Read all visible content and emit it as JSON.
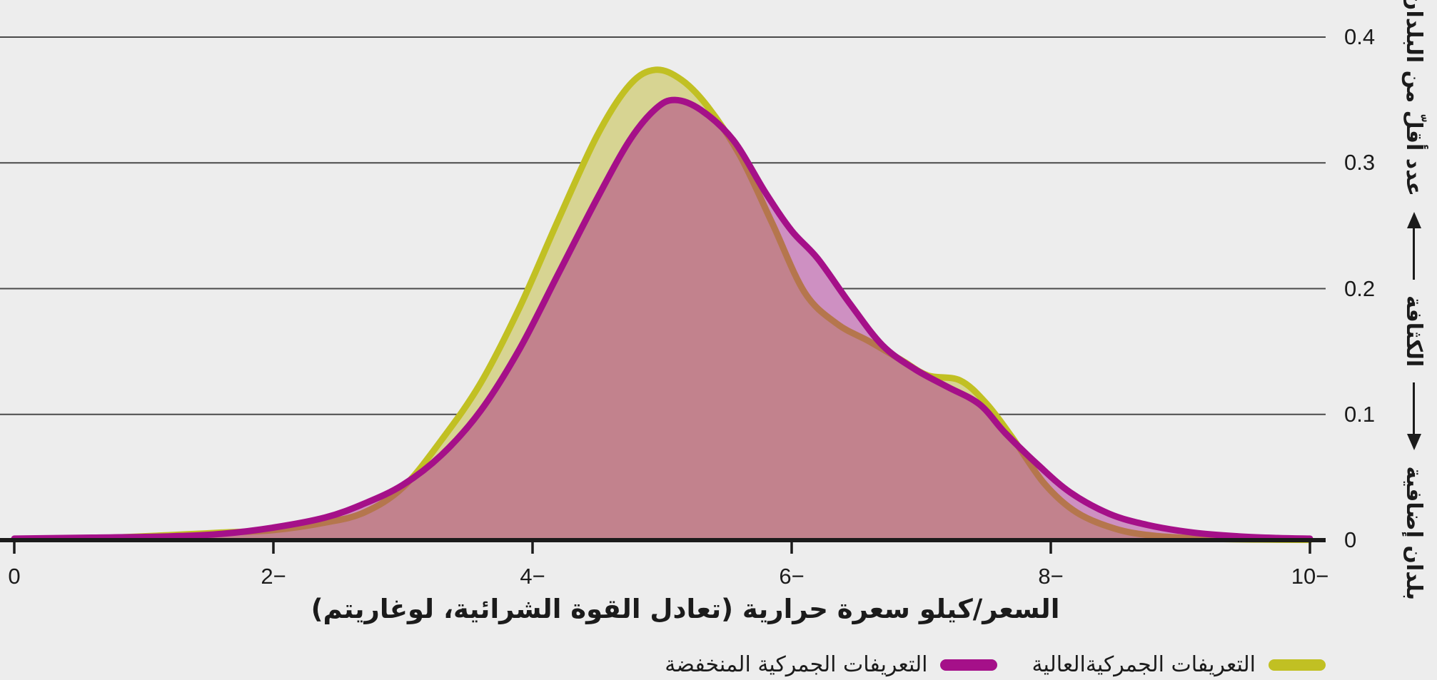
{
  "colors": {
    "background": "#ededed",
    "gridline": "#4a4a4a",
    "axis": "#1b1b1b",
    "text": "#1b1b1b",
    "high_tariffs_line": "#c1c023",
    "high_tariffs_fill": "#d7d492",
    "low_tariffs_line": "#a51089",
    "low_tariffs_fill": "rgba(165,16,137,0.42)"
  },
  "chart_data": {
    "type": "area",
    "title": "",
    "xlabel": "السعر/كيلو سعرة حرارية (تعادل القوة الشرائية، لوغاريتم)",
    "ylabel_right": {
      "top": "عدد أقلّ من البلدان",
      "middle": "الكثافة",
      "bottom": "بلدان إضافية"
    },
    "xlim": [
      0,
      -10
    ],
    "ylim": [
      0,
      0.4
    ],
    "grid": "horizontal",
    "legend_position": "bottom-right",
    "x_ticks": [
      "0",
      "−2",
      "−4",
      "−6",
      "−8",
      "−10"
    ],
    "x_tick_values": [
      0,
      -2,
      -4,
      -6,
      -8,
      -10
    ],
    "y_ticks": [
      "0",
      "0.1",
      "0.2",
      "0.3",
      "0.4"
    ],
    "y_tick_values": [
      0,
      0.1,
      0.2,
      0.3,
      0.4
    ],
    "series": [
      {
        "name": "التعريفات الجمركيةالعالية",
        "key": "high-tariffs",
        "color": "#c1c023",
        "fill": "#d7d492",
        "peak": {
          "x": -4.95,
          "density": 0.374
        },
        "points": [
          [
            0,
            0.0008
          ],
          [
            -0.6,
            0.0015
          ],
          [
            -1.2,
            0.004
          ],
          [
            -1.6,
            0.006
          ],
          [
            -2,
            0.008
          ],
          [
            -2.4,
            0.014
          ],
          [
            -2.7,
            0.022
          ],
          [
            -3,
            0.042
          ],
          [
            -3.3,
            0.08
          ],
          [
            -3.6,
            0.125
          ],
          [
            -3.9,
            0.185
          ],
          [
            -4.2,
            0.255
          ],
          [
            -4.5,
            0.322
          ],
          [
            -4.75,
            0.362
          ],
          [
            -4.95,
            0.374
          ],
          [
            -5.15,
            0.366
          ],
          [
            -5.35,
            0.345
          ],
          [
            -5.6,
            0.306
          ],
          [
            -5.85,
            0.252
          ],
          [
            -6.1,
            0.197
          ],
          [
            -6.35,
            0.172
          ],
          [
            -6.6,
            0.158
          ],
          [
            -6.85,
            0.143
          ],
          [
            -7.05,
            0.131
          ],
          [
            -7.3,
            0.127
          ],
          [
            -7.5,
            0.109
          ],
          [
            -7.7,
            0.082
          ],
          [
            -7.95,
            0.045
          ],
          [
            -8.2,
            0.022
          ],
          [
            -8.5,
            0.009
          ],
          [
            -8.8,
            0.0035
          ],
          [
            -9.2,
            0.0012
          ],
          [
            -9.6,
            0.0005
          ],
          [
            -10,
            0.0002
          ]
        ]
      },
      {
        "name": "التعريفات الجمركية المنخفضة",
        "key": "low-tariffs",
        "color": "#a51089",
        "fill": "rgba(165,16,137,0.42)",
        "peak": {
          "x": -5.1,
          "density": 0.35
        },
        "points": [
          [
            0,
            0.0012
          ],
          [
            -0.6,
            0.002
          ],
          [
            -1.2,
            0.003
          ],
          [
            -1.6,
            0.005
          ],
          [
            -2,
            0.01
          ],
          [
            -2.4,
            0.018
          ],
          [
            -2.7,
            0.029
          ],
          [
            -3,
            0.044
          ],
          [
            -3.3,
            0.068
          ],
          [
            -3.6,
            0.103
          ],
          [
            -3.9,
            0.152
          ],
          [
            -4.2,
            0.212
          ],
          [
            -4.5,
            0.272
          ],
          [
            -4.75,
            0.318
          ],
          [
            -4.95,
            0.343
          ],
          [
            -5.1,
            0.35
          ],
          [
            -5.3,
            0.342
          ],
          [
            -5.55,
            0.318
          ],
          [
            -5.8,
            0.276
          ],
          [
            -6,
            0.246
          ],
          [
            -6.2,
            0.224
          ],
          [
            -6.45,
            0.188
          ],
          [
            -6.7,
            0.155
          ],
          [
            -6.95,
            0.136
          ],
          [
            -7.2,
            0.122
          ],
          [
            -7.45,
            0.108
          ],
          [
            -7.65,
            0.085
          ],
          [
            -7.9,
            0.06
          ],
          [
            -8.15,
            0.038
          ],
          [
            -8.45,
            0.021
          ],
          [
            -8.75,
            0.012
          ],
          [
            -9.1,
            0.006
          ],
          [
            -9.45,
            0.003
          ],
          [
            -9.75,
            0.0017
          ],
          [
            -10,
            0.0012
          ]
        ]
      }
    ]
  }
}
